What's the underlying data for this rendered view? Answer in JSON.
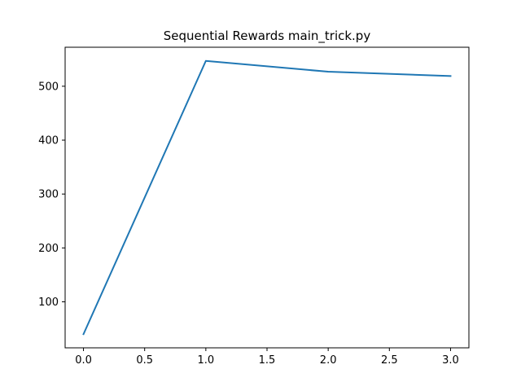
{
  "chart_data": {
    "type": "line",
    "title": "Sequential Rewards main_trick.py",
    "xlabel": "",
    "ylabel": "",
    "x": [
      0,
      1,
      2,
      3
    ],
    "series": [
      {
        "values": [
          40,
          547,
          527,
          519
        ],
        "color": "#1f77b4"
      }
    ],
    "xlim": [
      -0.15,
      3.15
    ],
    "ylim": [
      14.65,
      572.35
    ],
    "xticks": [
      0.0,
      0.5,
      1.0,
      1.5,
      2.0,
      2.5,
      3.0
    ],
    "xtick_labels": [
      "0.0",
      "0.5",
      "1.0",
      "1.5",
      "2.0",
      "2.5",
      "3.0"
    ],
    "yticks": [
      100,
      200,
      300,
      400,
      500
    ],
    "ytick_labels": [
      "100",
      "200",
      "300",
      "400",
      "500"
    ],
    "grid": false,
    "legend": "none"
  }
}
